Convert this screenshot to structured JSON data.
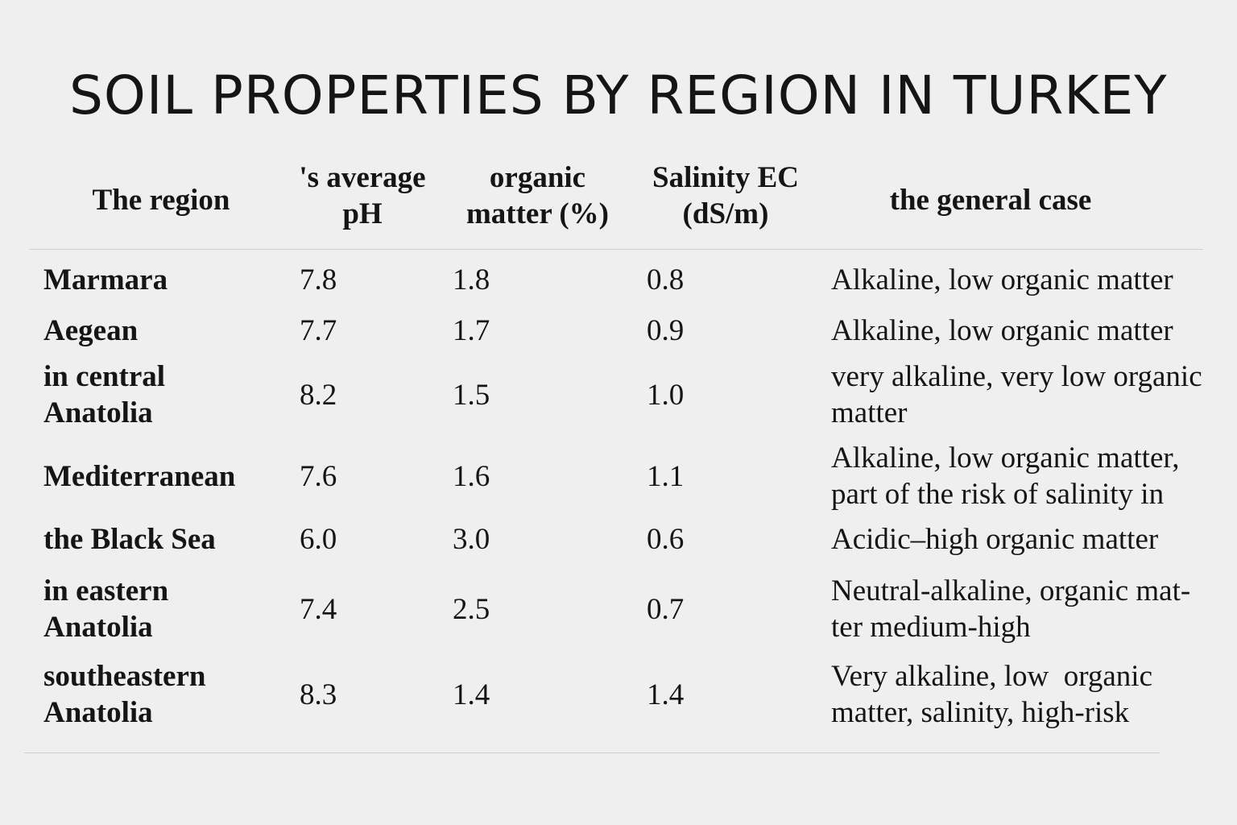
{
  "title": "SOIL PROPERTIES BY REGION IN TURKEY",
  "table": {
    "headers": {
      "region": "The region",
      "ph_line1": "'s average",
      "ph_line2": "pH",
      "om_line1": "organic",
      "om_line2": "matter (%)",
      "ec_line1": "Salinity EC",
      "ec_line2": "(dS/m)",
      "case": "the general case"
    },
    "rows": [
      {
        "region": [
          "Marmara"
        ],
        "ph": "7.8",
        "om": "1.8",
        "ec": "0.8",
        "case": [
          "Alkaline, low organic matter"
        ]
      },
      {
        "region": [
          "Aegean"
        ],
        "ph": "7.7",
        "om": "1.7",
        "ec": "0.9",
        "case": [
          "Alkaline, low organic matter"
        ]
      },
      {
        "region": [
          "in central",
          "Anatolia"
        ],
        "ph": "8.2",
        "om": "1.5",
        "ec": "1.0",
        "case": [
          "very alkaline, very low organic",
          "matter"
        ]
      },
      {
        "region": [
          "Mediterranean"
        ],
        "ph": "7.6",
        "om": "1.6",
        "ec": "1.1",
        "case": [
          "Alkaline, low organic matter,",
          "part of the risk of salinity in"
        ]
      },
      {
        "region": [
          "the Black Sea"
        ],
        "ph": "6.0",
        "om": "3.0",
        "ec": "0.6",
        "case": [
          "Acidic–high organic matter"
        ]
      },
      {
        "region": [
          "in eastern",
          "Anatolia"
        ],
        "ph": "7.4",
        "om": "2.5",
        "ec": "0.7",
        "case": [
          "Neutral-alkaline, organic mat-",
          "ter medium-high"
        ]
      },
      {
        "region": [
          "southeastern",
          "Anatolia"
        ],
        "ph": "8.3",
        "om": "1.4",
        "ec": "1.4",
        "case": [
          "Very alkaline, low  organic",
          "matter, salinity, high-risk"
        ]
      }
    ]
  }
}
